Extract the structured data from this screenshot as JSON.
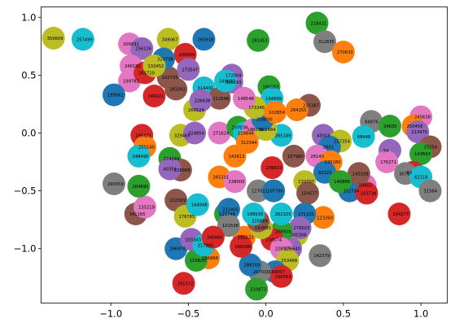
{
  "chart_data": {
    "type": "scatter",
    "title": "",
    "xlabel": "",
    "ylabel": "",
    "xlim": [
      -1.45,
      1.17
    ],
    "ylim": [
      -1.47,
      1.09
    ],
    "xticks": [
      -1.0,
      -0.5,
      0.0,
      0.5,
      1.0
    ],
    "yticks": [
      -1.0,
      -0.5,
      0.0,
      0.5,
      1.0
    ],
    "xtick_labels": [
      "−1.0",
      "−0.5",
      "0.0",
      "0.5",
      "1.0"
    ],
    "ytick_labels": [
      "−1.0",
      "−0.5",
      "0.0",
      "0.5",
      "1.0"
    ],
    "grid": false,
    "legend": "none",
    "marker": "filled circle",
    "palette": [
      "#1f77b4",
      "#ff7f0e",
      "#2ca02c",
      "#d62728",
      "#9467bd",
      "#8c564b",
      "#e377c2",
      "#7f7f7f",
      "#bcbd22",
      "#17becf"
    ],
    "points": [
      {
        "label": "359609",
        "x": -1.37,
        "y": 0.82,
        "c": 8
      },
      {
        "label": "257499",
        "x": -1.18,
        "y": 0.81,
        "c": 9
      },
      {
        "label": "205631",
        "x": -0.88,
        "y": 0.77,
        "c": 6
      },
      {
        "label": "349067",
        "x": -0.63,
        "y": 0.81,
        "c": 8
      },
      {
        "label": "263918",
        "x": -0.4,
        "y": 0.81,
        "c": 0
      },
      {
        "label": "218421",
        "x": 0.33,
        "y": 0.95,
        "c": 2
      },
      {
        "label": "281451",
        "x": -0.05,
        "y": 0.8,
        "c": 2
      },
      {
        "label": "312835",
        "x": 0.38,
        "y": 0.79,
        "c": 7
      },
      {
        "label": "270633",
        "x": 0.5,
        "y": 0.7,
        "c": 1
      },
      {
        "label": "256126",
        "x": -0.8,
        "y": 0.73,
        "c": 4
      },
      {
        "label": "246192",
        "x": -0.87,
        "y": 0.58,
        "c": 6
      },
      {
        "label": "199782",
        "x": -0.88,
        "y": 0.45,
        "c": 6
      },
      {
        "label": "199561",
        "x": -0.98,
        "y": 0.33,
        "c": 0
      },
      {
        "label": "265729",
        "x": -0.78,
        "y": 0.52,
        "c": 3
      },
      {
        "label": "314491",
        "x": -0.4,
        "y": 0.39,
        "c": 9
      },
      {
        "label": "318193",
        "x": -0.22,
        "y": 0.44,
        "c": 4
      },
      {
        "label": "180163",
        "x": 0.02,
        "y": 0.4,
        "c": 2
      },
      {
        "label": "235387",
        "x": 0.28,
        "y": 0.24,
        "c": 5
      },
      {
        "label": "264255",
        "x": 0.2,
        "y": 0.2,
        "c": 1
      },
      {
        "label": "194699",
        "x": 0.04,
        "y": 0.3,
        "c": 9
      },
      {
        "label": "266524",
        "x": -0.46,
        "y": 0.2,
        "c": 8
      },
      {
        "label": "146021",
        "x": -0.72,
        "y": 0.32,
        "c": 3
      },
      {
        "label": "283302",
        "x": -0.58,
        "y": 0.38,
        "c": 5
      },
      {
        "label": "84876",
        "x": 0.68,
        "y": 0.1,
        "c": 7
      },
      {
        "label": "34635",
        "x": 0.8,
        "y": 0.06,
        "c": 2
      },
      {
        "label": "245638",
        "x": 1.0,
        "y": 0.14,
        "c": 6
      },
      {
        "label": "250458",
        "x": 0.95,
        "y": 0.06,
        "c": 1
      },
      {
        "label": "213475",
        "x": 0.98,
        "y": 0.01,
        "c": 4
      },
      {
        "label": "43015",
        "x": 0.37,
        "y": -0.02,
        "c": 4
      },
      {
        "label": "157354",
        "x": 0.48,
        "y": -0.07,
        "c": 8
      },
      {
        "label": "68448",
        "x": 0.63,
        "y": -0.03,
        "c": 9
      },
      {
        "label": "54",
        "x": 0.8,
        "y": -0.15,
        "c": 4
      },
      {
        "label": "25554",
        "x": 1.06,
        "y": -0.12,
        "c": 5
      },
      {
        "label": "143693",
        "x": 1.0,
        "y": -0.18,
        "c": 2
      },
      {
        "label": "2651",
        "x": 0.41,
        "y": -0.12,
        "c": 0
      },
      {
        "label": "28143",
        "x": 0.33,
        "y": -0.2,
        "c": 6
      },
      {
        "label": "135280",
        "x": 0.42,
        "y": -0.25,
        "c": 1
      },
      {
        "label": "176271",
        "x": 0.78,
        "y": -0.25,
        "c": 6
      },
      {
        "label": "93",
        "x": 0.95,
        "y": -0.34,
        "c": 3
      },
      {
        "label": "3076",
        "x": 0.9,
        "y": -0.35,
        "c": 7
      },
      {
        "label": "62118",
        "x": 1.0,
        "y": -0.38,
        "c": 9
      },
      {
        "label": "31584",
        "x": 1.06,
        "y": -0.5,
        "c": 7
      },
      {
        "label": "18602",
        "x": 0.64,
        "y": -0.45,
        "c": 6
      },
      {
        "label": "102794",
        "x": 0.54,
        "y": -0.5,
        "c": 0
      },
      {
        "label": "143738",
        "x": 0.65,
        "y": -0.52,
        "c": 3
      },
      {
        "label": "234277",
        "x": 0.86,
        "y": -0.7,
        "c": 3
      },
      {
        "label": "143338",
        "x": 0.6,
        "y": -0.35,
        "c": 5
      },
      {
        "label": "82222",
        "x": 0.38,
        "y": -0.34,
        "c": 0
      },
      {
        "label": "133707",
        "x": 0.25,
        "y": -0.42,
        "c": 8
      },
      {
        "label": "146888",
        "x": 0.48,
        "y": -0.42,
        "c": 2
      },
      {
        "label": "150577",
        "x": 0.27,
        "y": -0.52,
        "c": 5
      },
      {
        "label": "142379",
        "x": 0.35,
        "y": -1.06,
        "c": 7
      },
      {
        "label": "123260",
        "x": 0.37,
        "y": -0.73,
        "c": 1
      },
      {
        "label": "171131",
        "x": 0.25,
        "y": -0.7,
        "c": 0
      },
      {
        "label": "200308",
        "x": 0.2,
        "y": -0.88,
        "c": 8
      },
      {
        "label": "175640",
        "x": 0.16,
        "y": -1.0,
        "c": 4
      },
      {
        "label": "276025",
        "x": 0.22,
        "y": -0.82,
        "c": 4
      },
      {
        "label": "208928",
        "x": 0.1,
        "y": -0.85,
        "c": 2
      },
      {
        "label": "262325",
        "x": 0.1,
        "y": -0.7,
        "c": 9
      },
      {
        "label": "218074",
        "x": 0.04,
        "y": -0.92,
        "c": 3
      },
      {
        "label": "228515",
        "x": 0.1,
        "y": -1.0,
        "c": 6
      },
      {
        "label": "253499",
        "x": 0.14,
        "y": -1.1,
        "c": 8
      },
      {
        "label": "184007",
        "x": 0.06,
        "y": -1.2,
        "c": 0
      },
      {
        "label": "239763",
        "x": 0.1,
        "y": -1.24,
        "c": 3
      },
      {
        "label": "297030",
        "x": -0.04,
        "y": -1.2,
        "c": 7
      },
      {
        "label": "310873",
        "x": -0.06,
        "y": -1.35,
        "c": 2
      },
      {
        "label": "291572",
        "x": -0.53,
        "y": -1.3,
        "c": 3
      },
      {
        "label": "286749",
        "x": -0.1,
        "y": -1.14,
        "c": 0
      },
      {
        "label": "156868",
        "x": -0.37,
        "y": -1.08,
        "c": 1
      },
      {
        "label": "155820",
        "x": -0.45,
        "y": -1.1,
        "c": 2
      },
      {
        "label": "296978",
        "x": -0.58,
        "y": -1.0,
        "c": 0
      },
      {
        "label": "103343",
        "x": -0.48,
        "y": -0.92,
        "c": 4
      },
      {
        "label": "317985",
        "x": -0.4,
        "y": -0.97,
        "c": 9
      },
      {
        "label": "185533",
        "x": -0.14,
        "y": -0.9,
        "c": 1
      },
      {
        "label": "199396",
        "x": -0.16,
        "y": -0.98,
        "c": 3
      },
      {
        "label": "193893",
        "x": -0.03,
        "y": -0.82,
        "c": 8
      },
      {
        "label": "325689",
        "x": -0.05,
        "y": -0.76,
        "c": 5
      },
      {
        "label": "199939",
        "x": -0.08,
        "y": -0.7,
        "c": 9
      },
      {
        "label": "341165",
        "x": -0.84,
        "y": -0.7,
        "c": 5
      },
      {
        "label": "135219",
        "x": -0.78,
        "y": -0.64,
        "c": 6
      },
      {
        "label": "290359",
        "x": -0.98,
        "y": -0.44,
        "c": 7
      },
      {
        "label": "264890",
        "x": -0.82,
        "y": -0.46,
        "c": 2
      },
      {
        "label": "222509",
        "x": -0.58,
        "y": -0.58,
        "c": 5
      },
      {
        "label": "176785",
        "x": -0.52,
        "y": -0.72,
        "c": 8
      },
      {
        "label": "115748",
        "x": -0.26,
        "y": -0.7,
        "c": 2
      },
      {
        "label": "232405",
        "x": -0.24,
        "y": -0.66,
        "c": 0
      },
      {
        "label": "195421",
        "x": -0.8,
        "y": -0.02,
        "c": 3
      },
      {
        "label": "255140",
        "x": -0.78,
        "y": -0.12,
        "c": 1
      },
      {
        "label": "248490",
        "x": -0.82,
        "y": -0.2,
        "c": 9
      },
      {
        "label": "274049",
        "x": -0.62,
        "y": -0.22,
        "c": 2
      },
      {
        "label": "228988",
        "x": -0.55,
        "y": -0.32,
        "c": 5
      },
      {
        "label": "40354",
        "x": -0.62,
        "y": -0.31,
        "c": 4
      },
      {
        "label": "265201",
        "x": -0.3,
        "y": -0.38,
        "c": 1
      },
      {
        "label": "127021",
        "x": -0.05,
        "y": -0.5,
        "c": 7
      },
      {
        "label": "107790",
        "x": 0.05,
        "y": -0.5,
        "c": 0
      },
      {
        "label": "329465",
        "x": -0.55,
        "y": -0.02,
        "c": 8
      },
      {
        "label": "324854",
        "x": -0.46,
        "y": 0.0,
        "c": 4
      },
      {
        "label": "271624",
        "x": -0.3,
        "y": 0.0,
        "c": 6
      },
      {
        "label": "297038",
        "x": -0.18,
        "y": 0.05,
        "c": 2
      },
      {
        "label": "118848",
        "x": -0.14,
        "y": 0.0,
        "c": 9
      },
      {
        "label": "196094",
        "x": -0.08,
        "y": 0.03,
        "c": 6
      },
      {
        "label": "312594",
        "x": -0.12,
        "y": -0.08,
        "c": 1
      },
      {
        "label": "265188",
        "x": 0.1,
        "y": -0.02,
        "c": 9
      },
      {
        "label": "122484",
        "x": 0.0,
        "y": 0.03,
        "c": 8
      },
      {
        "label": "208800",
        "x": -0.02,
        "y": 0.12,
        "c": 0
      },
      {
        "label": "173346",
        "x": -0.07,
        "y": 0.22,
        "c": 8
      },
      {
        "label": "148548",
        "x": -0.14,
        "y": 0.3,
        "c": 6
      },
      {
        "label": "212548",
        "x": -0.3,
        "y": 0.3,
        "c": 5
      },
      {
        "label": "226638",
        "x": -0.42,
        "y": 0.28,
        "c": 4
      },
      {
        "label": "102854",
        "x": 0.06,
        "y": 0.18,
        "c": 1
      },
      {
        "label": "157980",
        "x": 0.18,
        "y": -0.2,
        "c": 5
      },
      {
        "label": "209823",
        "x": 0.04,
        "y": -0.3,
        "c": 3
      },
      {
        "label": "142813",
        "x": -0.2,
        "y": -0.2,
        "c": 1
      },
      {
        "label": "164948",
        "x": -0.44,
        "y": -0.62,
        "c": 9
      },
      {
        "label": "238000",
        "x": -0.2,
        "y": -0.42,
        "c": 6
      },
      {
        "label": "102735",
        "x": -0.63,
        "y": 0.48,
        "c": 5
      },
      {
        "label": "101538",
        "x": -0.24,
        "y": -0.8,
        "c": 7
      },
      {
        "label": "340466",
        "x": -0.34,
        "y": -0.9,
        "c": 3
      },
      {
        "label": "206009",
        "x": -0.52,
        "y": 0.68,
        "c": 3
      },
      {
        "label": "273547",
        "x": -0.5,
        "y": 0.55,
        "c": 4
      },
      {
        "label": "320738",
        "x": -0.66,
        "y": 0.64,
        "c": 0
      },
      {
        "label": "132452",
        "x": -0.72,
        "y": 0.58,
        "c": 8
      },
      {
        "label": "172004",
        "x": -0.22,
        "y": 0.5,
        "c": 4
      },
      {
        "label": "140603",
        "x": -0.26,
        "y": 0.45,
        "c": 9
      }
    ]
  }
}
